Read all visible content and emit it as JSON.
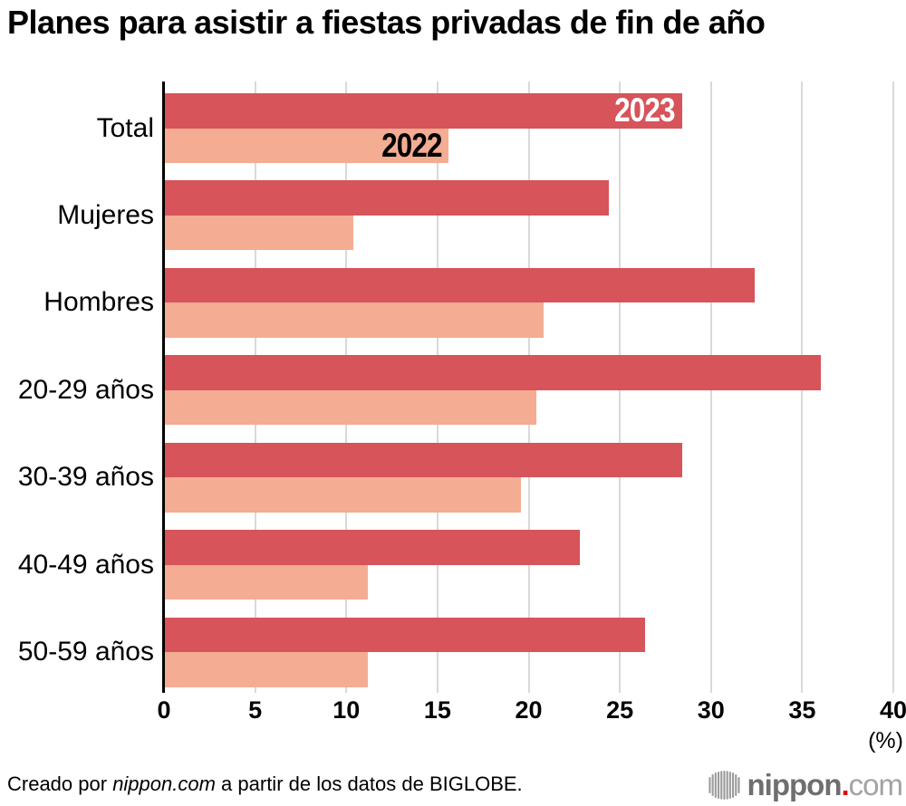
{
  "title": "Planes para asistir a fiestas privadas de fin de año",
  "chart_data": {
    "type": "bar",
    "orientation": "horizontal",
    "categories": [
      "Total",
      "Mujeres",
      "Hombres",
      "20-29 años",
      "30-39 años",
      "40-49 años",
      "50-59 años"
    ],
    "series": [
      {
        "name": "2023",
        "color": "#d6545a",
        "label_color": "#ffffff",
        "values": [
          28.4,
          24.4,
          32.4,
          36.0,
          28.4,
          22.8,
          26.4
        ]
      },
      {
        "name": "2022",
        "color": "#f4ac92",
        "label_color": "#000000",
        "values": [
          15.6,
          10.4,
          20.8,
          20.4,
          19.6,
          11.2,
          11.2
        ]
      }
    ],
    "xlim": [
      0,
      40
    ],
    "xticks": [
      0,
      5,
      10,
      15,
      20,
      25,
      30,
      35,
      40
    ],
    "x_unit_label": "(%)",
    "grid": "vertical-gridlines-on",
    "gridline_color": "#d9d9d9",
    "axis_color": "#000000",
    "legend_position": "series-labels-inside-first-row-bars"
  },
  "footer": {
    "credit": {
      "prefix": "Creado por ",
      "source": "nippon.com",
      "suffix": " a partir de los datos de BIGLOBE."
    },
    "logo": {
      "icon": "soundwave-bars-icon",
      "icon_color": "#9b9b9b",
      "brand": "nippon",
      "dot": ".",
      "tld": "com",
      "brand_color": "#6f6f6f",
      "dot_color": "#e60012",
      "tld_color": "#a3a3a3"
    }
  }
}
